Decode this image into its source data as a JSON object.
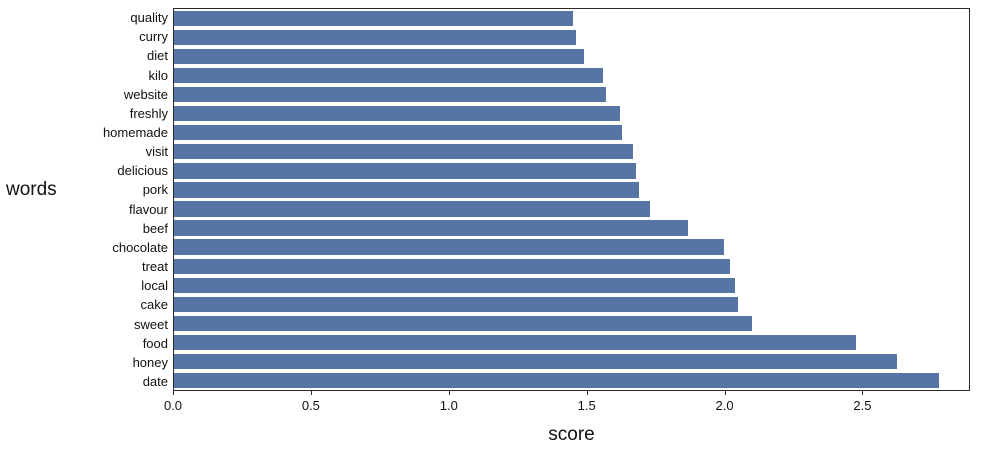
{
  "figure": {
    "background": "#ffffff",
    "bar_color": "#5575a4",
    "spine_color": "#2b2b2b"
  },
  "chart_data": {
    "type": "bar",
    "orientation": "horizontal",
    "title": "",
    "xlabel": "score",
    "ylabel": "words",
    "categories": [
      "quality",
      "curry",
      "diet",
      "kilo",
      "website",
      "freshly",
      "homemade",
      "visit",
      "delicious",
      "pork",
      "flavour",
      "beef",
      "chocolate",
      "treat",
      "local",
      "cake",
      "sweet",
      "food",
      "honey",
      "date"
    ],
    "values": [
      1.45,
      1.46,
      1.49,
      1.56,
      1.57,
      1.62,
      1.63,
      1.67,
      1.68,
      1.69,
      1.73,
      1.87,
      2.0,
      2.02,
      2.04,
      2.05,
      2.1,
      2.48,
      2.63,
      2.78
    ],
    "xlim": [
      0,
      2.89
    ],
    "xticks": [
      0,
      0.5,
      1.0,
      1.5,
      2.0,
      2.5
    ],
    "xtick_labels": [
      "0.0",
      "0.5",
      "1.0",
      "1.5",
      "2.0",
      "2.5"
    ],
    "grid": false,
    "legend": null
  }
}
